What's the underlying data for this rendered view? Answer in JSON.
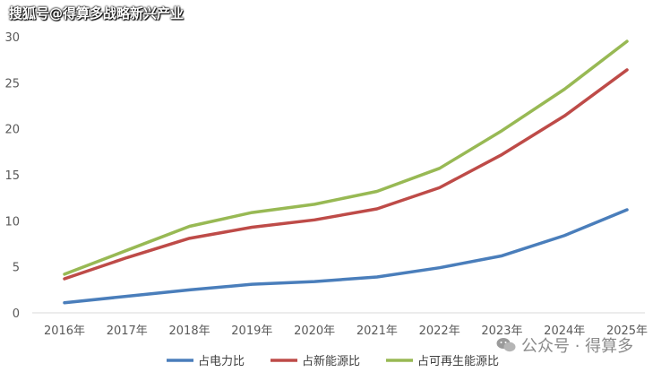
{
  "watermark_top": "搜狐号@得算多战略新兴产业",
  "watermark_bottom": "公众号 · 得算多",
  "colors": {
    "series": [
      "#4a7ebb",
      "#be4b48",
      "#98b954"
    ],
    "axis": "#d9d9d9"
  },
  "chart_data": {
    "type": "line",
    "title": "",
    "xlabel": "",
    "ylabel": "",
    "x": [
      "2016年",
      "2017年",
      "2018年",
      "2019年",
      "2020年",
      "2021年",
      "2022年",
      "2023年",
      "2024年",
      "2025年"
    ],
    "ylim": [
      0,
      30
    ],
    "yticks": [
      "0",
      "5",
      "10",
      "15",
      "20",
      "25",
      "30"
    ],
    "grid": false,
    "legend_position": "bottom",
    "series": [
      {
        "name": "占电力比",
        "values": [
          1.1,
          1.8,
          2.5,
          3.1,
          3.4,
          3.9,
          4.9,
          6.2,
          8.4,
          11.2
        ]
      },
      {
        "name": "占新能源比",
        "values": [
          3.7,
          6.0,
          8.1,
          9.3,
          10.1,
          11.3,
          13.6,
          17.2,
          21.4,
          26.4
        ]
      },
      {
        "name": "占可再生能源比",
        "values": [
          4.2,
          6.8,
          9.4,
          10.9,
          11.8,
          13.2,
          15.7,
          19.8,
          24.3,
          29.5
        ]
      }
    ]
  }
}
